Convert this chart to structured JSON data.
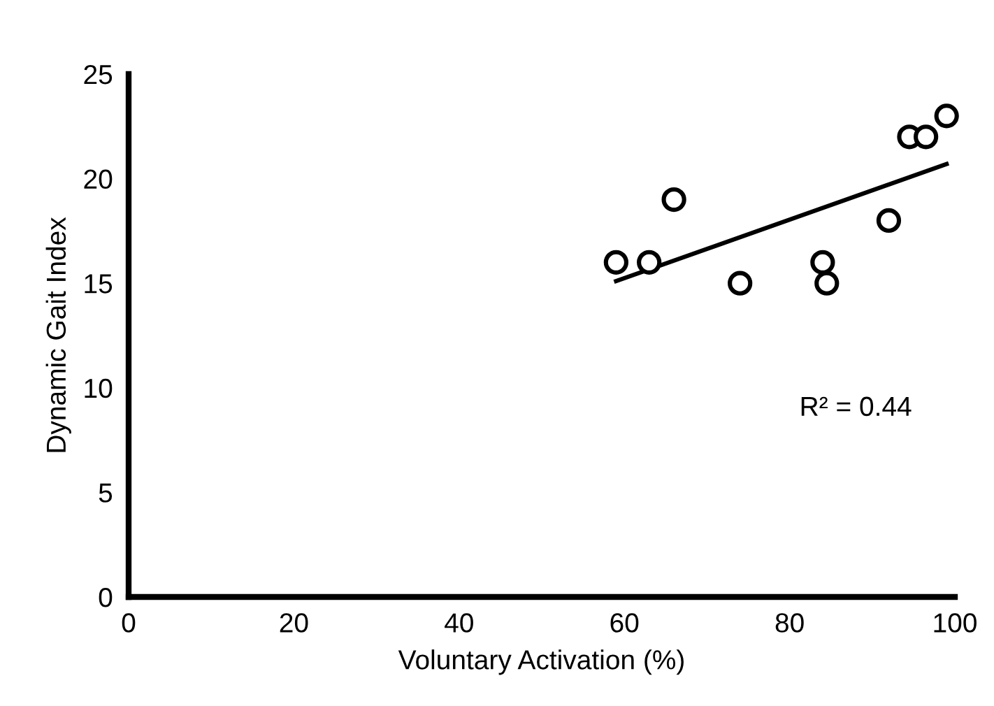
{
  "chart_data": {
    "type": "scatter",
    "xlabel": "Voluntary Activation (%)",
    "ylabel": "Dynamic Gait Index",
    "xlim": [
      0,
      100
    ],
    "xticks": [
      0,
      20,
      40,
      60,
      80,
      100
    ],
    "ylim": [
      0,
      25
    ],
    "yticks": [
      0,
      5,
      10,
      15,
      20,
      25
    ],
    "grid": false,
    "legend": false,
    "series": [
      {
        "marker": "circle",
        "color": "#000000",
        "x": [
          59,
          63,
          66,
          74,
          84,
          84.5,
          92,
          94.5,
          96.5,
          99
        ],
        "values": [
          16,
          16,
          19,
          15,
          16,
          15,
          18,
          22,
          22,
          23
        ]
      },
      {
        "type": "line",
        "color": "#000000",
        "x": [
          59,
          99
        ],
        "values": [
          15.1,
          20.7
        ]
      }
    ],
    "annotations": [
      "R² = 0.44"
    ]
  }
}
